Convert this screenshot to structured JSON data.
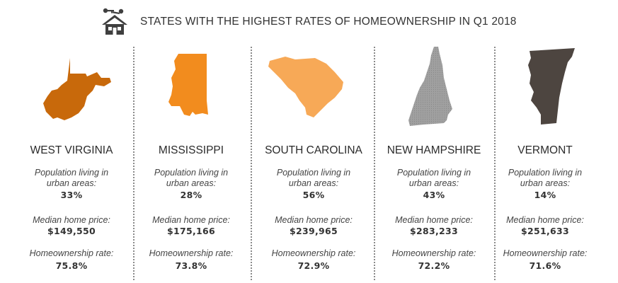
{
  "header": {
    "title": "STATES WITH THE HIGHEST RATES OF HOMEOWNERSHIP IN Q1 2018",
    "icon": "house-with-keys-icon"
  },
  "labels": {
    "population_line1": "Population living in",
    "population_line2": "urban areas:",
    "median": "Median home price:",
    "homeownership": "Homeownership rate:"
  },
  "states": [
    {
      "name": "WEST VIRGINIA",
      "urban": "33%",
      "median_price": "$149,550",
      "rate": "75.8%",
      "color": "#c8690b",
      "icon": "west-virginia-map-icon"
    },
    {
      "name": "MISSISSIPPI",
      "urban": "28%",
      "median_price": "$175,166",
      "rate": "73.8%",
      "color": "#f28c1e",
      "icon": "mississippi-map-icon"
    },
    {
      "name": "SOUTH CAROLINA",
      "urban": "56%",
      "median_price": "$239,965",
      "rate": "72.9%",
      "color": "#f7a957",
      "icon": "south-carolina-map-icon"
    },
    {
      "name": "NEW HAMPSHIRE",
      "urban": "43%",
      "median_price": "$283,233",
      "rate": "72.2%",
      "color": "#9b9b9b",
      "icon": "new-hampshire-map-icon"
    },
    {
      "name": "VERMONT",
      "urban": "14%",
      "median_price": "$251,633",
      "rate": "71.6%",
      "color": "#4d4540",
      "icon": "vermont-map-icon"
    }
  ]
}
